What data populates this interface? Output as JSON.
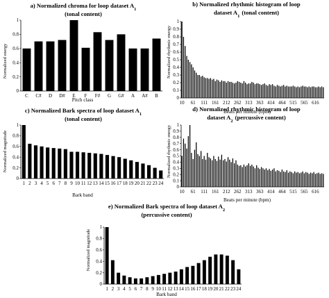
{
  "chart_data": [
    {
      "id": "a",
      "type": "bar",
      "title_lines": [
        "a) Normalized chroma for loop dataset A",
        "(tonal content)"
      ],
      "title_subscript": "1",
      "xlabel": "Pitch class",
      "ylabel": "Normalized energy",
      "ylim": [
        0,
        1
      ],
      "yticks": [
        "0",
        "0.2",
        "0.4",
        "0.6",
        "0.8",
        "1"
      ],
      "categories": [
        "C",
        "C#",
        "D",
        "D#",
        "E",
        "F",
        "F#",
        "G",
        "G#",
        "A",
        "A#",
        "B"
      ],
      "values": [
        0.6,
        0.7,
        0.7,
        0.72,
        1.0,
        0.61,
        0.83,
        0.72,
        0.8,
        0.6,
        0.6,
        0.74
      ],
      "bar_color": "#000000"
    },
    {
      "id": "b",
      "type": "bar",
      "title_lines": [
        "b) Normalized rhythmic histogram of loop",
        "dataset A",
        "(tonal content)"
      ],
      "title_subscript": "1",
      "xlabel": "Beats per minute (bpm)",
      "ylabel": "Normalized rhythmic energy",
      "ylim": [
        0,
        1
      ],
      "yticks": [
        "0",
        "0.1",
        "0.2",
        "0.3",
        "0.4",
        "0.5",
        "0.6",
        "0.7",
        "0.8",
        "0.9",
        "1"
      ],
      "xticklabels": [
        "10",
        "61",
        "111",
        "161",
        "212",
        "262",
        "313",
        "363",
        "414",
        "464",
        "515",
        "565",
        "616"
      ],
      "values": [
        1.0,
        0.8,
        0.68,
        0.55,
        0.5,
        0.47,
        0.44,
        0.4,
        0.36,
        0.33,
        0.3,
        0.3,
        0.28,
        0.29,
        0.27,
        0.26,
        0.26,
        0.25,
        0.26,
        0.24,
        0.25,
        0.22,
        0.24,
        0.23,
        0.21,
        0.23,
        0.22,
        0.22,
        0.2,
        0.22,
        0.21,
        0.21,
        0.2,
        0.19,
        0.2,
        0.22,
        0.21,
        0.2,
        0.19,
        0.22,
        0.2,
        0.18,
        0.19,
        0.19,
        0.21,
        0.2,
        0.18,
        0.19,
        0.19,
        0.18,
        0.17,
        0.18,
        0.19,
        0.17,
        0.16,
        0.18,
        0.17,
        0.18,
        0.16,
        0.15,
        0.17,
        0.16,
        0.15,
        0.16,
        0.17,
        0.15,
        0.16,
        0.15,
        0.15,
        0.15,
        0.16,
        0.15,
        0.14,
        0.15,
        0.14,
        0.15,
        0.16,
        0.15,
        0.15,
        0.14,
        0.15,
        0.14,
        0.15,
        0.15,
        0.14,
        0.14,
        0.15,
        0.14,
        0.15,
        0.14
      ],
      "bar_color": "#000000"
    },
    {
      "id": "c",
      "type": "bar",
      "title_lines": [
        "c) Normalized Bark spectra of loop dataset A",
        "(tonal content)"
      ],
      "title_subscript": "1",
      "xlabel": "Bark band",
      "ylabel": "Normalized magnitude",
      "ylim": [
        0,
        1
      ],
      "yticks": [
        "0",
        "0.2",
        "0.4",
        "0.6",
        "0.8",
        "1"
      ],
      "categories": [
        "1",
        "2",
        "3",
        "4",
        "5",
        "6",
        "7",
        "8",
        "9",
        "10",
        "11",
        "12",
        "13",
        "14",
        "15",
        "16",
        "17",
        "18",
        "19",
        "20",
        "21",
        "22",
        "23",
        "24"
      ],
      "values": [
        1.0,
        0.65,
        0.62,
        0.6,
        0.58,
        0.57,
        0.56,
        0.55,
        0.5,
        0.5,
        0.49,
        0.48,
        0.47,
        0.46,
        0.44,
        0.42,
        0.4,
        0.37,
        0.34,
        0.31,
        0.28,
        0.25,
        0.2,
        0.15
      ],
      "bar_color": "#000000"
    },
    {
      "id": "d",
      "type": "bar",
      "title_lines": [
        "d) Normalized rhythmic histogram of loop",
        "dataset A",
        "(percussive content)"
      ],
      "title_subscript": "2",
      "xlabel": "Beats per minute (bpm)",
      "ylabel": "Normalized rhythmic energy",
      "ylim": [
        0,
        1
      ],
      "yticks": [
        "0",
        "0.1",
        "0.2",
        "0.3",
        "0.4",
        "0.5",
        "0.6",
        "0.7",
        "0.8",
        "0.9",
        "1"
      ],
      "xticklabels": [
        "10",
        "61",
        "111",
        "161",
        "212",
        "262",
        "313",
        "363",
        "414",
        "464",
        "515",
        "565",
        "616"
      ],
      "values": [
        0.5,
        0.78,
        0.7,
        0.62,
        0.82,
        1.0,
        0.55,
        0.45,
        0.6,
        0.72,
        0.53,
        0.5,
        0.58,
        0.45,
        0.5,
        0.44,
        0.55,
        0.48,
        0.46,
        0.43,
        0.5,
        0.45,
        0.42,
        0.49,
        0.44,
        0.52,
        0.43,
        0.45,
        0.41,
        0.48,
        0.44,
        0.4,
        0.46,
        0.38,
        0.43,
        0.36,
        0.34,
        0.35,
        0.32,
        0.36,
        0.33,
        0.35,
        0.38,
        0.34,
        0.36,
        0.33,
        0.3,
        0.35,
        0.31,
        0.29,
        0.32,
        0.3,
        0.28,
        0.3,
        0.27,
        0.29,
        0.26,
        0.28,
        0.3,
        0.25,
        0.27,
        0.26,
        0.24,
        0.28,
        0.25,
        0.24,
        0.27,
        0.23,
        0.25,
        0.24,
        0.22,
        0.25,
        0.23,
        0.24,
        0.22,
        0.23,
        0.25,
        0.22,
        0.24,
        0.23,
        0.21,
        0.23,
        0.22,
        0.24,
        0.21,
        0.22,
        0.23,
        0.21,
        0.22,
        0.21
      ],
      "bar_color": "#000000"
    },
    {
      "id": "e",
      "type": "bar",
      "title_lines": [
        "e) Normalized Bark spectra of loop dataset A",
        "(percussive content)"
      ],
      "title_subscript": "2",
      "xlabel": "Bark band",
      "ylabel": "Normalized magnitude",
      "ylim": [
        0,
        1
      ],
      "yticks": [
        "0",
        "0.2",
        "0.4",
        "0.6",
        "0.8",
        "1"
      ],
      "categories": [
        "1",
        "2",
        "3",
        "4",
        "5",
        "6",
        "7",
        "8",
        "9",
        "10",
        "11",
        "12",
        "13",
        "14",
        "15",
        "16",
        "17",
        "18",
        "19",
        "20",
        "21",
        "22",
        "23",
        "24"
      ],
      "values": [
        1.0,
        0.42,
        0.2,
        0.15,
        0.12,
        0.1,
        0.1,
        0.12,
        0.14,
        0.16,
        0.18,
        0.2,
        0.22,
        0.26,
        0.3,
        0.32,
        0.37,
        0.42,
        0.48,
        0.52,
        0.52,
        0.5,
        0.42,
        0.26
      ],
      "bar_color": "#000000"
    }
  ]
}
